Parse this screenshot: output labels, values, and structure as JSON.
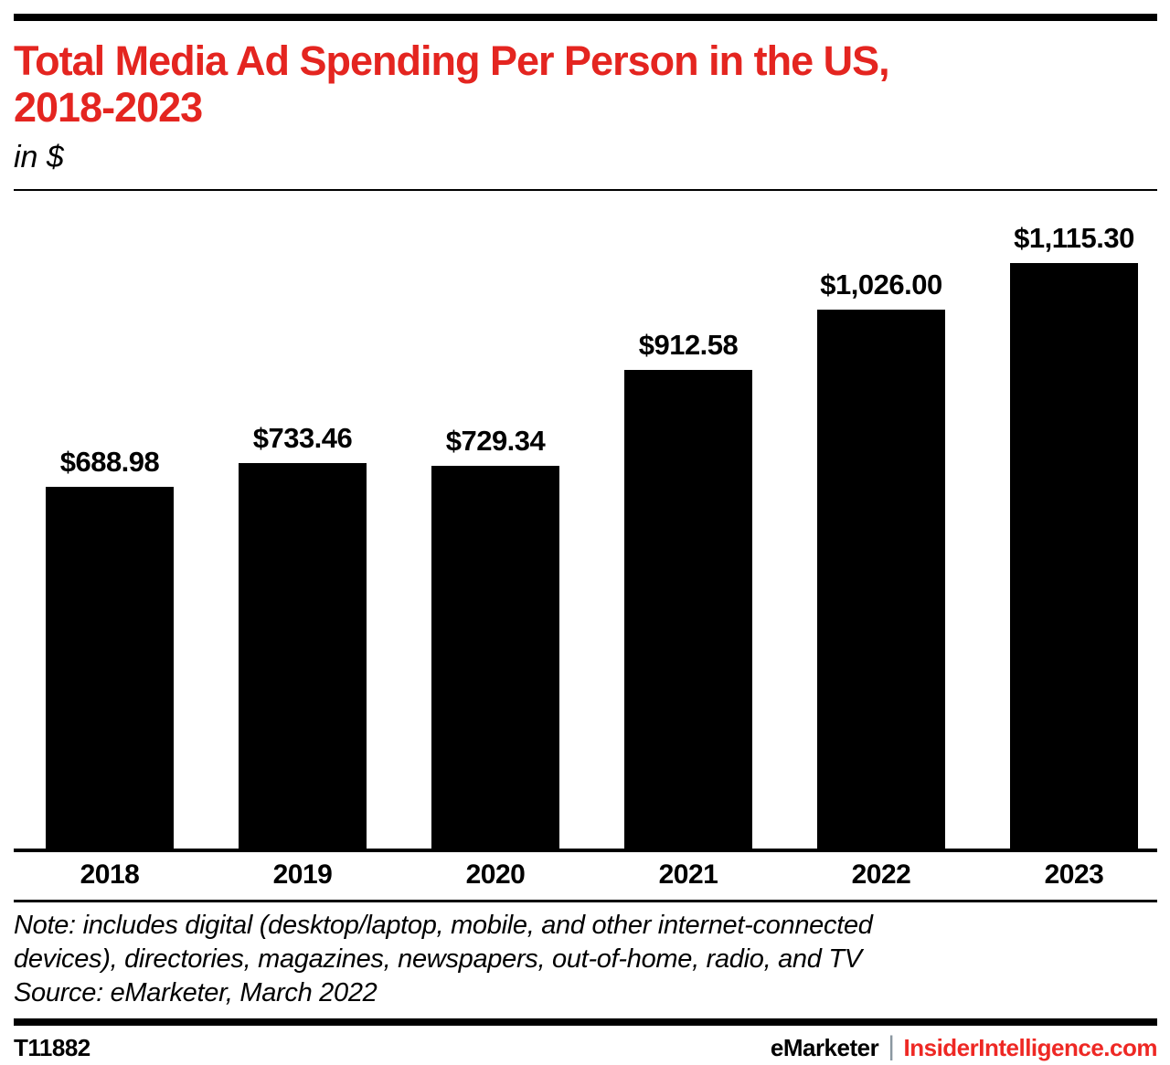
{
  "header": {
    "title_line1": "Total Media Ad Spending Per Person in the US,",
    "title_line2": "2018-2023",
    "subtitle": "in $"
  },
  "chart_data": {
    "type": "bar",
    "title": "Total Media Ad Spending Per Person in the US, 2018-2023",
    "xlabel": "",
    "ylabel": "in $",
    "categories": [
      "2018",
      "2019",
      "2020",
      "2021",
      "2022",
      "2023"
    ],
    "values": [
      688.98,
      733.46,
      729.34,
      912.58,
      1026.0,
      1115.3
    ],
    "value_labels": [
      "$688.98",
      "$733.46",
      "$729.34",
      "$912.58",
      "$1,026.00",
      "$1,115.30"
    ],
    "ylim": [
      0,
      1115.3
    ],
    "grid": false,
    "legend": "none",
    "bar_color": "#000000"
  },
  "notes": {
    "note_line1": "Note: includes digital (desktop/laptop, mobile, and other internet-connected",
    "note_line2": "devices), directories, magazines, newspapers, out-of-home, radio, and TV",
    "source": "Source: eMarketer, March 2022"
  },
  "footer": {
    "chart_id": "T11882",
    "brand": "eMarketer",
    "separator": "|",
    "site": "InsiderIntelligence.com"
  },
  "colors": {
    "accent_red": "#e42520",
    "footer_red": "#ee2824",
    "separator_gray": "#8a97a0",
    "bar_black": "#000000"
  }
}
